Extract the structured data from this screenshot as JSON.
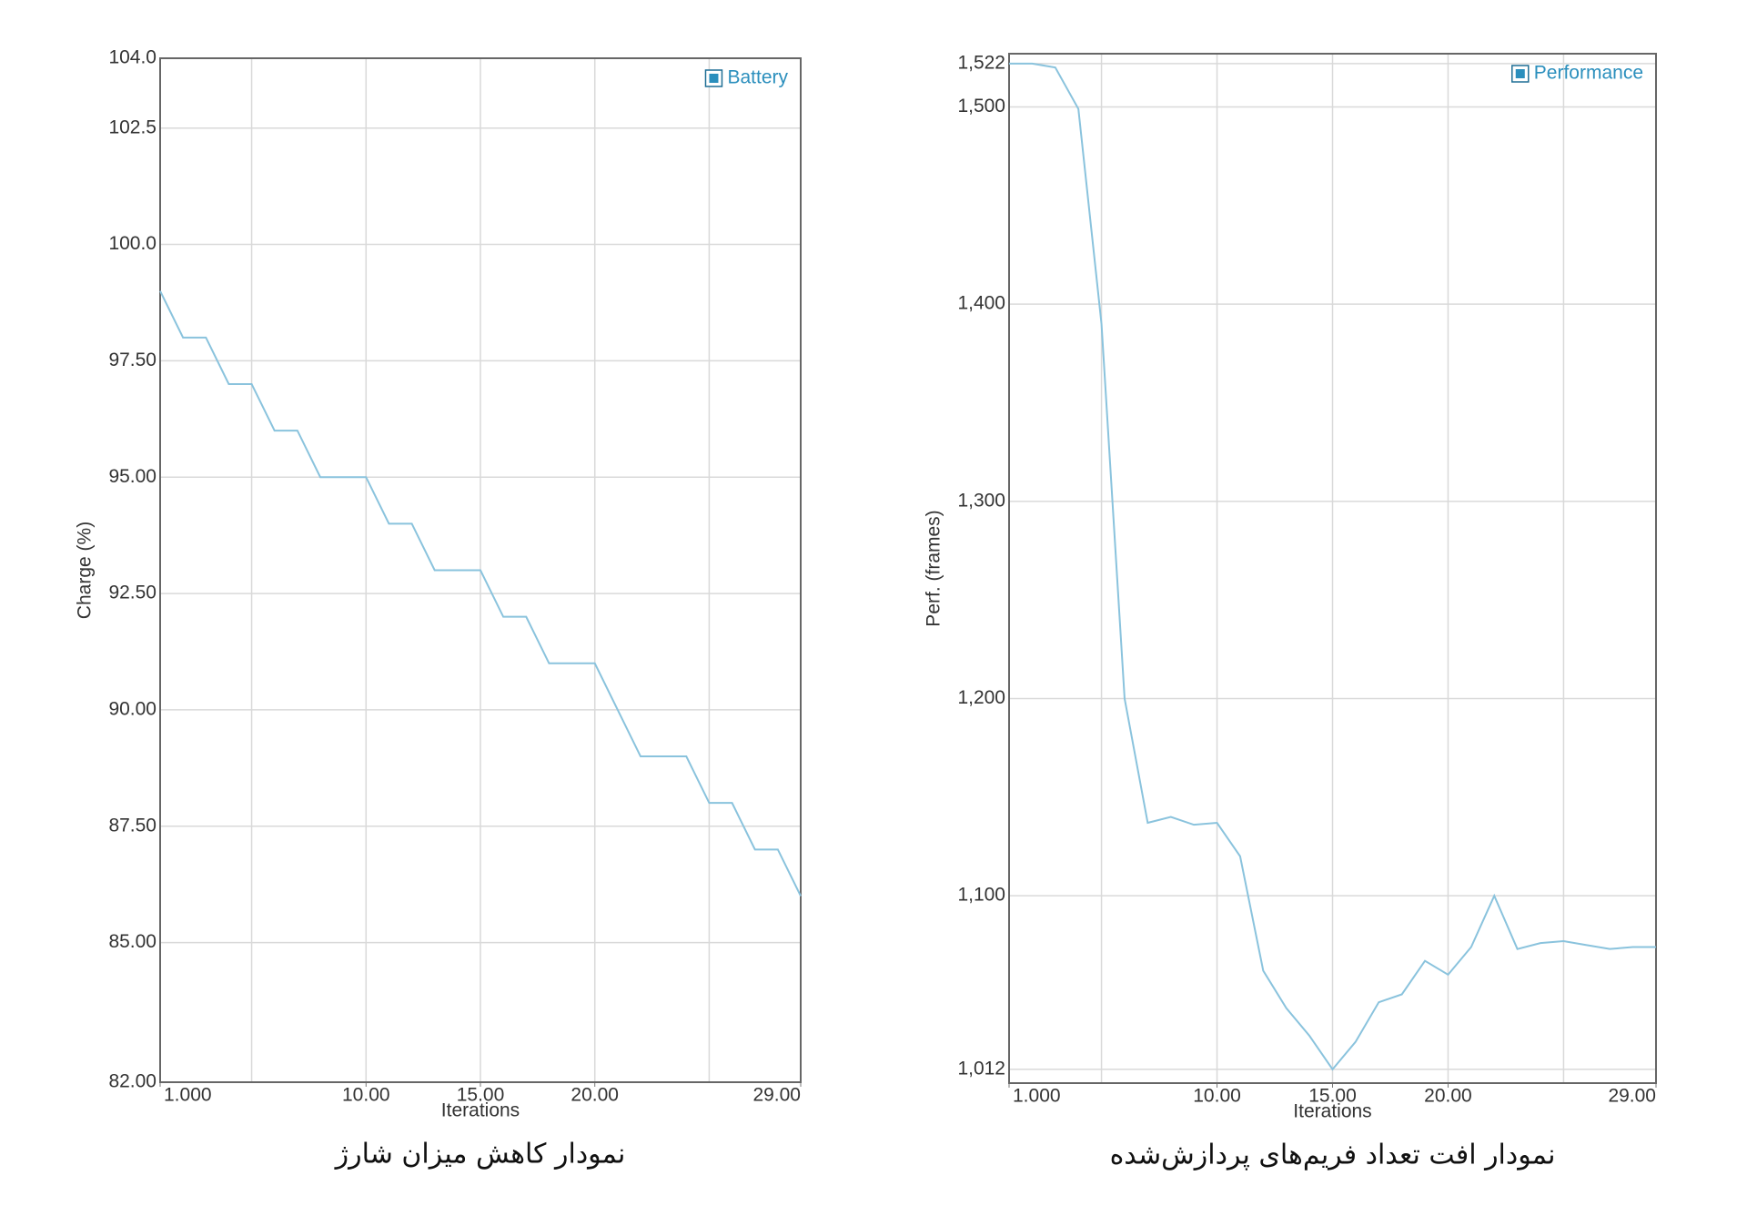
{
  "chart_data": [
    {
      "type": "line",
      "title": "نمودار کاهش میزان شارژ",
      "x_label": "Iterations",
      "y_label": "Charge (%)",
      "x": [
        1,
        2,
        3,
        4,
        5,
        6,
        7,
        8,
        9,
        10,
        11,
        12,
        13,
        14,
        15,
        16,
        17,
        18,
        19,
        20,
        21,
        22,
        23,
        24,
        25,
        26,
        27,
        28,
        29
      ],
      "series": [
        {
          "name": "Battery",
          "color": "#8ac3dd",
          "values": [
            99,
            98,
            98,
            97,
            97,
            96,
            96,
            95,
            95,
            95,
            94,
            94,
            93,
            93,
            93,
            92,
            92,
            91,
            91,
            91,
            90,
            89,
            89,
            89,
            88,
            88,
            87,
            87,
            86
          ]
        }
      ],
      "xlim": [
        1,
        29
      ],
      "xticks": [
        {
          "value": 1,
          "label": "1.000"
        },
        {
          "value": 10,
          "label": "10.00"
        },
        {
          "value": 15,
          "label": "15.00"
        },
        {
          "value": 20,
          "label": "20.00"
        },
        {
          "value": 29,
          "label": "29.00"
        }
      ],
      "xgrid": [
        5,
        10,
        15,
        20,
        25
      ],
      "ylim": [
        82,
        104
      ],
      "yticks": [
        {
          "value": 82,
          "label": "82.00"
        },
        {
          "value": 85,
          "label": "85.00"
        },
        {
          "value": 87.5,
          "label": "87.50"
        },
        {
          "value": 90,
          "label": "90.00"
        },
        {
          "value": 92.5,
          "label": "92.50"
        },
        {
          "value": 95,
          "label": "95.00"
        },
        {
          "value": 97.5,
          "label": "97.50"
        },
        {
          "value": 100,
          "label": "100.0"
        },
        102.5,
        {
          "value": 104,
          "label": "104.0"
        }
      ],
      "grid": true,
      "legend": "upper right"
    },
    {
      "type": "line",
      "title": "نمودار افت تعداد فریم‌های پردازش‌شده",
      "x_label": "Iterations",
      "y_label": "Perf. (frames)",
      "x": [
        1,
        2,
        3,
        4,
        5,
        6,
        7,
        8,
        9,
        10,
        11,
        12,
        13,
        14,
        15,
        16,
        17,
        18,
        19,
        20,
        21,
        22,
        23,
        24,
        25,
        26,
        27,
        28,
        29
      ],
      "series": [
        {
          "name": "Performance",
          "color": "#8ac3dd",
          "values": [
            1522,
            1522,
            1520,
            1499,
            1390,
            1200,
            1137,
            1140,
            1136,
            1137,
            1120,
            1062,
            1043,
            1029,
            1012,
            1026,
            1046,
            1050,
            1067,
            1060,
            1074,
            1100,
            1073,
            1076,
            1077,
            1075,
            1073,
            1074,
            1074
          ]
        }
      ],
      "xlim": [
        1,
        29
      ],
      "xticks": [
        {
          "value": 1,
          "label": "1.000"
        },
        {
          "value": 10,
          "label": "10.00"
        },
        {
          "value": 15,
          "label": "15.00"
        },
        {
          "value": 20,
          "label": "20.00"
        },
        {
          "value": 29,
          "label": "29.00"
        }
      ],
      "xgrid": [
        5,
        10,
        15,
        20,
        25
      ],
      "ylim": [
        1005,
        1527
      ],
      "yticks": [
        {
          "value": 1012,
          "label": "1,012"
        },
        {
          "value": 1100,
          "label": "1,100"
        },
        {
          "value": 1200,
          "label": "1,200"
        },
        {
          "value": 1300,
          "label": "1,300"
        },
        {
          "value": 1400,
          "label": "1,400"
        },
        {
          "value": 1500,
          "label": "1,500"
        },
        {
          "value": 1522,
          "label": "1,522"
        }
      ],
      "grid": true,
      "legend": "upper right"
    }
  ]
}
